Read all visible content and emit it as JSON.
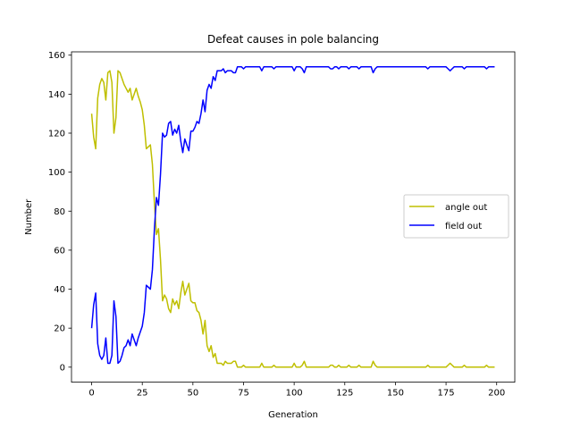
{
  "chart_data": {
    "type": "line",
    "title": "Defeat causes in pole balancing",
    "xlabel": "Generation",
    "ylabel": "Number",
    "xlim": [
      -9.95,
      208.95
    ],
    "ylim": [
      -7.7,
      161.7
    ],
    "xticks": [
      0,
      25,
      50,
      75,
      100,
      125,
      150,
      175,
      200
    ],
    "yticks": [
      0,
      20,
      40,
      60,
      80,
      100,
      120,
      140,
      160
    ],
    "grid": false,
    "legend_position": "center-right",
    "series": [
      {
        "name": "angle out",
        "color": "#bfbf00",
        "values": [
          130,
          118,
          112,
          138,
          145,
          148,
          146,
          137,
          151,
          152,
          146,
          120,
          128,
          152,
          151,
          148,
          145,
          143,
          141,
          143,
          137,
          140,
          143,
          139,
          136,
          132,
          124,
          112,
          113,
          114,
          104,
          84,
          68,
          71,
          55,
          34,
          37,
          35,
          30,
          28,
          35,
          32,
          34,
          30,
          38,
          44,
          37,
          40,
          43,
          34,
          33,
          33,
          29,
          28,
          24,
          17,
          24,
          11,
          8,
          11,
          5,
          7,
          2,
          2,
          2,
          1,
          3,
          2,
          2,
          2,
          3,
          3,
          0,
          0,
          0,
          1,
          0,
          0,
          0,
          0,
          0,
          0,
          0,
          0,
          2,
          0,
          0,
          0,
          0,
          0,
          1,
          0,
          0,
          0,
          0,
          0,
          0,
          0,
          0,
          0,
          2,
          0,
          0,
          0,
          1,
          3,
          0,
          0,
          0,
          0,
          0,
          0,
          0,
          0,
          0,
          0,
          0,
          0,
          1,
          1,
          0,
          0,
          1,
          0,
          0,
          0,
          0,
          1,
          0,
          0,
          0,
          0,
          1,
          0,
          0,
          0,
          0,
          0,
          0,
          3,
          1,
          0,
          0,
          0,
          0,
          0,
          0,
          0,
          0,
          0,
          0,
          0,
          0,
          0,
          0,
          0,
          0,
          0,
          0,
          0,
          0,
          0,
          0,
          0,
          0,
          0,
          1,
          0,
          0,
          0,
          0,
          0,
          0,
          0,
          0,
          0,
          1,
          2,
          1,
          0,
          0,
          0,
          0,
          0,
          1,
          0,
          0,
          0,
          0,
          0,
          0,
          0,
          0,
          0,
          0,
          1,
          0,
          0,
          0,
          0
        ]
      },
      {
        "name": "field out",
        "color": "#0000ff",
        "values": [
          20,
          32,
          38,
          12,
          6,
          4,
          6,
          15,
          2,
          2,
          6,
          34,
          26,
          2,
          3,
          6,
          10,
          11,
          14,
          11,
          17,
          14,
          11,
          15,
          18,
          21,
          28,
          42,
          41,
          40,
          50,
          71,
          87,
          83,
          99,
          120,
          118,
          119,
          125,
          126,
          119,
          122,
          120,
          124,
          116,
          110,
          117,
          114,
          111,
          121,
          121,
          123,
          126,
          125,
          130,
          137,
          131,
          142,
          145,
          143,
          149,
          147,
          152,
          152,
          152,
          153,
          151,
          152,
          152,
          152,
          151,
          151,
          154,
          154,
          154,
          153,
          154,
          154,
          154,
          154,
          154,
          154,
          154,
          154,
          152,
          154,
          154,
          154,
          154,
          154,
          153,
          154,
          154,
          154,
          154,
          154,
          154,
          154,
          154,
          154,
          152,
          154,
          154,
          154,
          153,
          151,
          154,
          154,
          154,
          154,
          154,
          154,
          154,
          154,
          154,
          154,
          154,
          154,
          153,
          153,
          154,
          154,
          153,
          154,
          154,
          154,
          154,
          153,
          154,
          154,
          154,
          154,
          153,
          154,
          154,
          154,
          154,
          154,
          154,
          151,
          153,
          154,
          154,
          154,
          154,
          154,
          154,
          154,
          154,
          154,
          154,
          154,
          154,
          154,
          154,
          154,
          154,
          154,
          154,
          154,
          154,
          154,
          154,
          154,
          154,
          154,
          153,
          154,
          154,
          154,
          154,
          154,
          154,
          154,
          154,
          154,
          153,
          152,
          153,
          154,
          154,
          154,
          154,
          154,
          153,
          154,
          154,
          154,
          154,
          154,
          154,
          154,
          154,
          154,
          154,
          153,
          154,
          154,
          154,
          154
        ]
      }
    ]
  }
}
